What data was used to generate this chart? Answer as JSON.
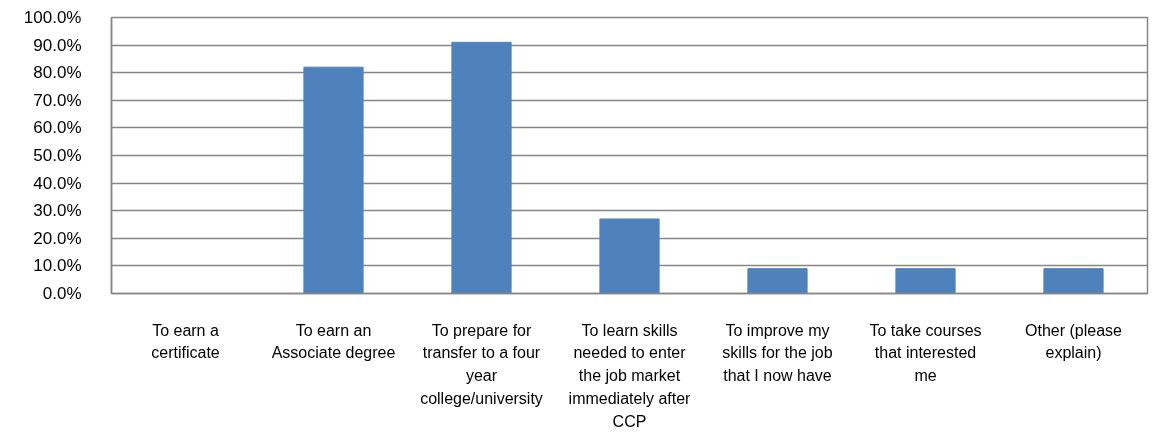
{
  "chart_data": {
    "type": "bar",
    "categories": [
      "To earn a certificate",
      "To earn an Associate degree",
      "To prepare for transfer to a four year college/university",
      "To learn skills needed to enter the job market immediately after CCP",
      "To improve my skills for the job that I now have",
      "To take courses that interested me",
      "Other (please explain)"
    ],
    "values": [
      0,
      82,
      91,
      27,
      9,
      9,
      9
    ],
    "color": "#4f81bd",
    "ylim": [
      0,
      100
    ],
    "yticks": [
      {
        "value": 0,
        "label": "0.0%"
      },
      {
        "value": 10,
        "label": "10.0%"
      },
      {
        "value": 20,
        "label": "20.0%"
      },
      {
        "value": 30,
        "label": "30.0%"
      },
      {
        "value": 40,
        "label": "40.0%"
      },
      {
        "value": 50,
        "label": "50.0%"
      },
      {
        "value": 60,
        "label": "60.0%"
      },
      {
        "value": 70,
        "label": "70.0%"
      },
      {
        "value": 80,
        "label": "80.0%"
      },
      {
        "value": 90,
        "label": "90.0%"
      },
      {
        "value": 100,
        "label": "100.0%"
      }
    ],
    "grid": "y"
  }
}
